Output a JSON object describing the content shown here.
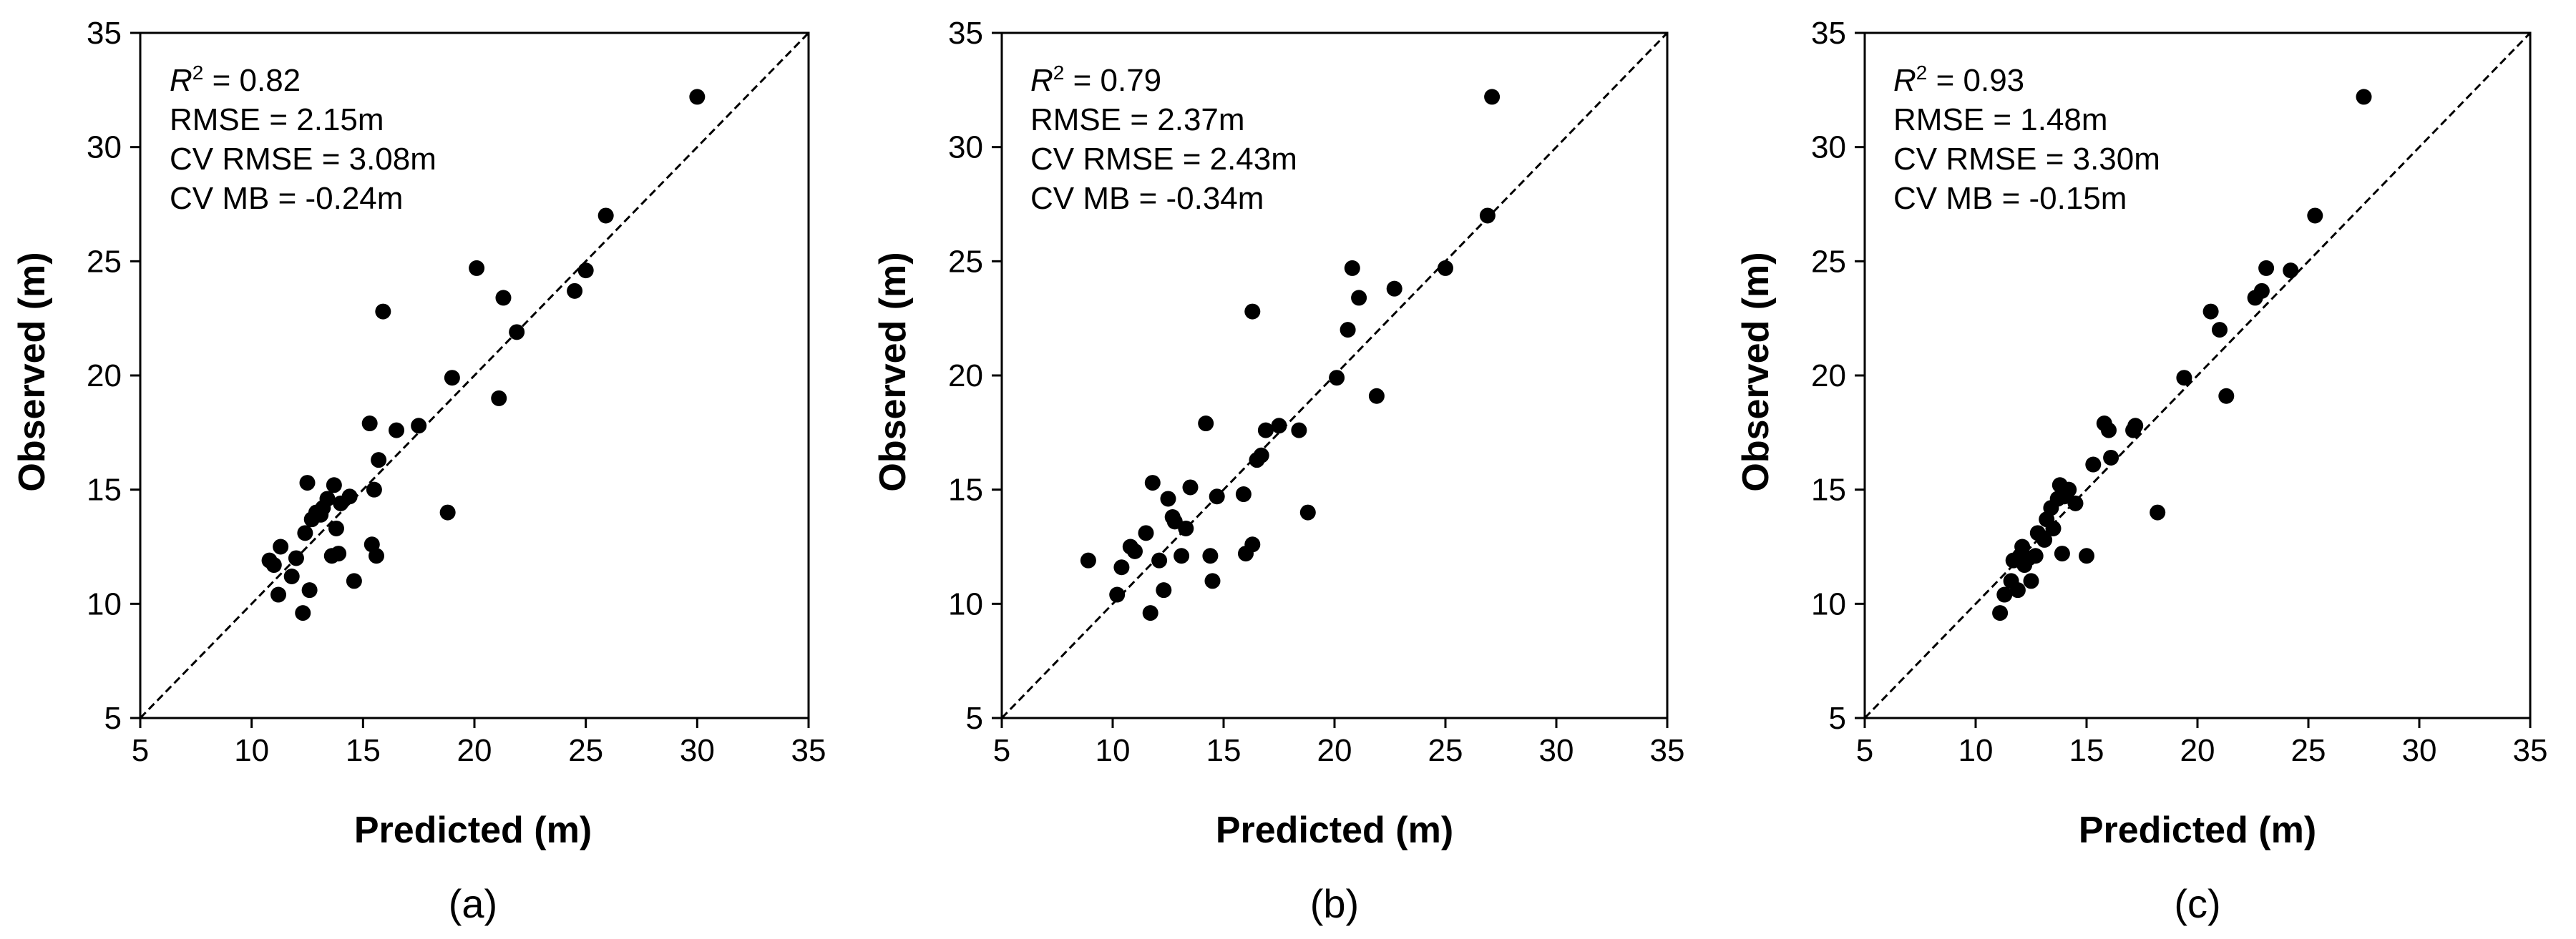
{
  "figure": {
    "panel_captions": [
      "(a)",
      "(b)",
      "(c)"
    ]
  },
  "chart_data": [
    {
      "type": "scatter",
      "panel": "(a)",
      "xlabel": "Predicted (m)",
      "ylabel": "Observed (m)",
      "xlim": [
        5,
        35
      ],
      "ylim": [
        5,
        35
      ],
      "xticks": [
        5,
        10,
        15,
        20,
        25,
        30,
        35
      ],
      "yticks": [
        5,
        10,
        15,
        20,
        25,
        30,
        35
      ],
      "reference_line": "1:1",
      "stats": {
        "r2_symbol": "R",
        "r2_superscript": "2",
        "r2_value": " = 0.82",
        "rmse": "RMSE = 2.15m",
        "cv_rmse": "CV RMSE = 3.08m",
        "cv_mb": "CV MB = -0.24m"
      },
      "x": [
        10.8,
        11.0,
        11.2,
        11.3,
        11.8,
        12.0,
        12.3,
        12.4,
        12.5,
        12.6,
        12.7,
        12.9,
        13.1,
        13.2,
        13.4,
        13.6,
        13.7,
        13.8,
        13.9,
        14.0,
        14.4,
        14.6,
        15.3,
        15.4,
        15.5,
        15.6,
        15.7,
        15.9,
        16.5,
        17.5,
        18.8,
        19.0,
        20.1,
        21.1,
        21.3,
        21.9,
        24.5,
        25.0,
        25.9,
        30.0
      ],
      "y": [
        11.9,
        11.7,
        10.4,
        12.5,
        11.2,
        12.0,
        9.6,
        13.1,
        15.3,
        10.6,
        13.7,
        14.0,
        13.9,
        14.2,
        14.6,
        12.1,
        15.2,
        13.3,
        12.2,
        14.4,
        14.7,
        11.0,
        17.9,
        12.6,
        15.0,
        12.1,
        16.3,
        22.8,
        17.6,
        17.8,
        14.0,
        19.9,
        24.7,
        19.0,
        23.4,
        21.9,
        23.7,
        24.6,
        27.0,
        32.2
      ]
    },
    {
      "type": "scatter",
      "panel": "(b)",
      "xlabel": "Predicted (m)",
      "ylabel": "Observed (m)",
      "xlim": [
        5,
        35
      ],
      "ylim": [
        5,
        35
      ],
      "xticks": [
        5,
        10,
        15,
        20,
        25,
        30,
        35
      ],
      "yticks": [
        5,
        10,
        15,
        20,
        25,
        30,
        35
      ],
      "reference_line": "1:1",
      "stats": {
        "r2_symbol": "R",
        "r2_superscript": "2",
        "r2_value": " = 0.79",
        "rmse": "RMSE = 2.37m",
        "cv_rmse": "CV RMSE = 2.43m",
        "cv_mb": "CV MB = -0.34m"
      },
      "x": [
        8.9,
        10.2,
        10.4,
        10.8,
        11.0,
        11.5,
        11.7,
        11.8,
        12.1,
        12.3,
        12.5,
        12.7,
        12.8,
        13.1,
        13.3,
        13.5,
        14.2,
        14.4,
        14.5,
        14.7,
        15.9,
        16.0,
        16.3,
        16.3,
        16.5,
        16.7,
        16.9,
        17.5,
        18.4,
        18.8,
        20.1,
        20.6,
        20.8,
        21.1,
        21.9,
        22.7,
        25.0,
        26.9,
        27.1
      ],
      "y": [
        11.9,
        10.4,
        11.6,
        12.5,
        12.3,
        13.1,
        9.6,
        15.3,
        11.9,
        10.6,
        14.6,
        13.8,
        13.6,
        12.1,
        13.3,
        15.1,
        17.9,
        12.1,
        11.0,
        14.7,
        14.8,
        12.2,
        22.8,
        12.6,
        16.3,
        16.5,
        17.6,
        17.8,
        17.6,
        14.0,
        19.9,
        22.0,
        24.7,
        23.4,
        19.1,
        23.8,
        24.7,
        27.0,
        32.2
      ]
    },
    {
      "type": "scatter",
      "panel": "(c)",
      "xlabel": "Predicted (m)",
      "ylabel": "Observed (m)",
      "xlim": [
        5,
        35
      ],
      "ylim": [
        5,
        35
      ],
      "xticks": [
        5,
        10,
        15,
        20,
        25,
        30,
        35
      ],
      "yticks": [
        5,
        10,
        15,
        20,
        25,
        30,
        35
      ],
      "reference_line": "1:1",
      "stats": {
        "r2_symbol": "R",
        "r2_superscript": "2",
        "r2_value": " = 0.93",
        "rmse": "RMSE = 1.48m",
        "cv_rmse": "CV RMSE = 3.30m",
        "cv_mb": "CV MB = -0.15m"
      },
      "x": [
        11.1,
        11.3,
        11.6,
        11.7,
        11.9,
        12.0,
        12.1,
        12.2,
        12.4,
        12.5,
        12.7,
        12.8,
        13.1,
        13.2,
        13.4,
        13.5,
        13.7,
        13.8,
        13.9,
        14.0,
        14.2,
        14.5,
        15.0,
        15.3,
        15.8,
        16.0,
        16.1,
        17.1,
        17.2,
        18.2,
        19.4,
        20.6,
        21.0,
        21.3,
        22.6,
        22.9,
        23.1,
        24.2,
        25.3,
        27.5
      ],
      "y": [
        9.6,
        10.4,
        11.0,
        11.9,
        10.6,
        12.1,
        12.5,
        11.7,
        12.0,
        11.0,
        12.1,
        13.1,
        12.8,
        13.7,
        14.2,
        13.3,
        14.6,
        15.2,
        12.2,
        14.7,
        15.0,
        14.4,
        12.1,
        16.1,
        17.9,
        17.6,
        16.4,
        17.6,
        17.8,
        14.0,
        19.9,
        22.8,
        22.0,
        19.1,
        23.4,
        23.7,
        24.7,
        24.6,
        27.0,
        32.2
      ]
    }
  ]
}
